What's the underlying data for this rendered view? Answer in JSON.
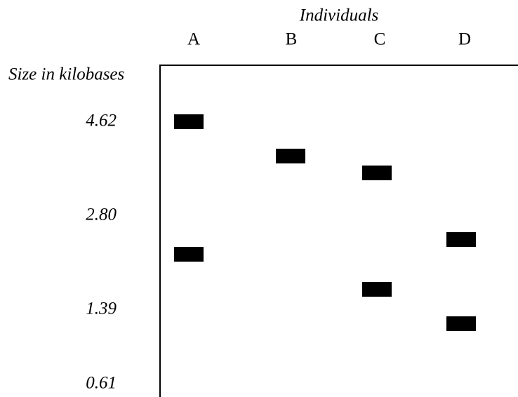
{
  "title": "Individuals",
  "lanes": [
    "A",
    "B",
    "C",
    "D"
  ],
  "axis_label": "Size in kilobases",
  "markers": [
    "4.62",
    "2.80",
    "1.39",
    "0.61"
  ]
}
